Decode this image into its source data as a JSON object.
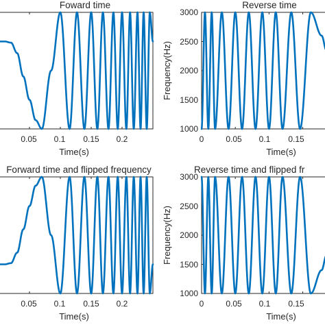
{
  "chart_data": [
    {
      "type": "line",
      "title": "Foward time",
      "xlabel": "Time(s)",
      "ylabel": "",
      "xlim": [
        0,
        0.25
      ],
      "ylim": [
        1000,
        3000
      ],
      "xticks": [
        "0.05",
        "0.1",
        "0.15",
        "0.2"
      ],
      "yticks": [],
      "series": [
        {
          "x": [
            0,
            0.01,
            0.02,
            0.03,
            0.04,
            0.05,
            0.06,
            0.07,
            0.085,
            0.1,
            0.115,
            0.127,
            0.139,
            0.15,
            0.16,
            0.169,
            0.178,
            0.186,
            0.193,
            0.2,
            0.207,
            0.213,
            0.219,
            0.225,
            0.23,
            0.235,
            0.24,
            0.245,
            0.25
          ],
          "y": [
            2500,
            2500,
            2480,
            2300,
            1900,
            1500,
            1150,
            1000,
            2000,
            3000,
            1000,
            3000,
            1000,
            3000,
            1000,
            3000,
            1000,
            3000,
            1000,
            3000,
            1000,
            3000,
            1000,
            3000,
            1000,
            3000,
            1000,
            3000,
            2500
          ]
        }
      ]
    },
    {
      "type": "line",
      "title": "Reverse time",
      "xlabel": "Time(s)",
      "ylabel": "Frequency(Hz)",
      "xlim": [
        0,
        0.185
      ],
      "ylim": [
        1000,
        3000
      ],
      "xticks": [
        "0",
        "0.05",
        "0.1",
        "0.15",
        "0"
      ],
      "yticks": [
        "1000",
        "1500",
        "2000",
        "2500",
        "3000"
      ],
      "series": [
        {
          "x": [
            0,
            0.005,
            0.01,
            0.015,
            0.02,
            0.03,
            0.04,
            0.05,
            0.06,
            0.07,
            0.08,
            0.09,
            0.1,
            0.11,
            0.12,
            0.133,
            0.146,
            0.162,
            0.178,
            0.185
          ],
          "y": [
            1000,
            3000,
            1000,
            3000,
            1000,
            3000,
            1000,
            3000,
            1000,
            3000,
            1000,
            3000,
            1000,
            3000,
            1000,
            3000,
            1000,
            3000,
            2600,
            2350
          ]
        }
      ]
    },
    {
      "type": "line",
      "title": "Forward time and flipped frequency",
      "xlabel": "Time(s)",
      "ylabel": "",
      "xlim": [
        0,
        0.25
      ],
      "ylim": [
        1000,
        3000
      ],
      "xticks": [
        "0.05",
        "0.1",
        "0.15",
        "0.2"
      ],
      "yticks": [],
      "series": [
        {
          "x": [
            0,
            0.01,
            0.02,
            0.03,
            0.04,
            0.05,
            0.06,
            0.07,
            0.085,
            0.1,
            0.115,
            0.127,
            0.139,
            0.15,
            0.16,
            0.169,
            0.178,
            0.186,
            0.193,
            0.2,
            0.207,
            0.213,
            0.219,
            0.225,
            0.23,
            0.235,
            0.24,
            0.245,
            0.25
          ],
          "y": [
            1500,
            1500,
            1520,
            1700,
            2100,
            2500,
            2850,
            3000,
            2000,
            1000,
            3000,
            1000,
            3000,
            1000,
            3000,
            1000,
            3000,
            1000,
            3000,
            1000,
            3000,
            1000,
            3000,
            1000,
            3000,
            1000,
            3000,
            1000,
            1500
          ]
        }
      ]
    },
    {
      "type": "line",
      "title": "Reverse time and flipped fr",
      "xlabel": "Time(s)",
      "ylabel": "Frequency(Hz)",
      "xlim": [
        0,
        0.185
      ],
      "ylim": [
        1000,
        3000
      ],
      "xticks": [
        "0",
        "0.05",
        "0.1",
        "0.15",
        "0"
      ],
      "yticks": [
        "1000",
        "1500",
        "2000",
        "2500",
        "3000"
      ],
      "series": [
        {
          "x": [
            0,
            0.005,
            0.01,
            0.015,
            0.02,
            0.03,
            0.04,
            0.05,
            0.06,
            0.07,
            0.08,
            0.09,
            0.1,
            0.11,
            0.12,
            0.133,
            0.146,
            0.162,
            0.178,
            0.185
          ],
          "y": [
            3000,
            1000,
            3000,
            1000,
            3000,
            1000,
            3000,
            1000,
            3000,
            1000,
            3000,
            1000,
            3000,
            1000,
            3000,
            1000,
            3000,
            1000,
            1400,
            1650
          ]
        }
      ]
    }
  ]
}
